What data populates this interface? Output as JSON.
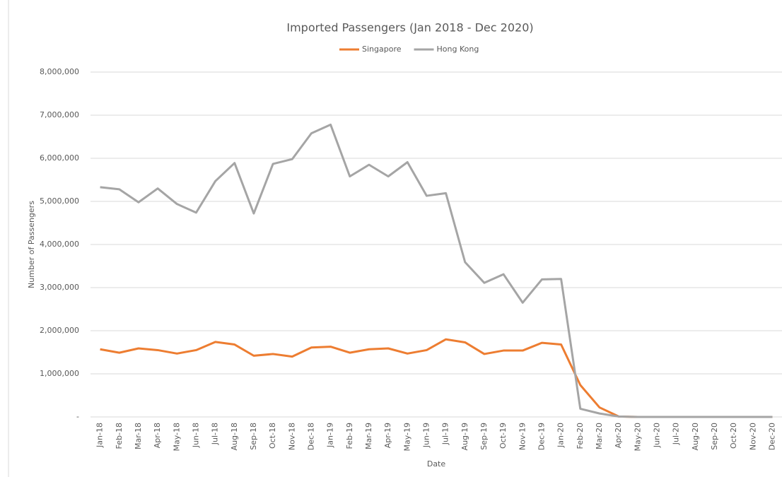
{
  "chart_data": {
    "type": "line",
    "title": "Imported Passengers (Jan 2018 - Dec 2020)",
    "x_label": "Date",
    "y_label": "Number of Passengers",
    "categories": [
      "Jan-18",
      "Feb-18",
      "Mar-18",
      "Apr-18",
      "May-18",
      "Jun-18",
      "Jul-18",
      "Aug-18",
      "Sep-18",
      "Oct-18",
      "Nov-18",
      "Dec-18",
      "Jan-19",
      "Feb-19",
      "Mar-19",
      "Apr-19",
      "May-19",
      "Jun-19",
      "Jul-19",
      "Aug-19",
      "Sep-19",
      "Oct-19",
      "Nov-19",
      "Dec-19",
      "Jan-20",
      "Feb-20",
      "Mar-20",
      "Apr-20",
      "May-20",
      "Jun-20",
      "Jul-20",
      "Aug-20",
      "Sep-20",
      "Oct-20",
      "Nov-20",
      "Dec-20"
    ],
    "series": [
      {
        "name": "Singapore",
        "color": "#ed7d31",
        "values": [
          1570000,
          1490000,
          1590000,
          1550000,
          1470000,
          1550000,
          1740000,
          1680000,
          1420000,
          1460000,
          1400000,
          1610000,
          1630000,
          1490000,
          1570000,
          1590000,
          1470000,
          1550000,
          1800000,
          1730000,
          1460000,
          1540000,
          1540000,
          1720000,
          1680000,
          740000,
          220000,
          10000,
          0,
          0,
          0,
          0,
          0,
          0,
          0,
          0
        ]
      },
      {
        "name": "Hong Kong",
        "color": "#a5a5a5",
        "values": [
          5330000,
          5280000,
          4980000,
          5300000,
          4940000,
          4740000,
          5470000,
          5890000,
          4720000,
          5870000,
          5980000,
          6580000,
          6780000,
          5580000,
          5850000,
          5580000,
          5910000,
          5130000,
          5190000,
          3590000,
          3110000,
          3310000,
          2650000,
          3190000,
          3200000,
          190000,
          80000,
          10000,
          0,
          0,
          0,
          0,
          0,
          0,
          0,
          0
        ]
      }
    ],
    "ylim": [
      0,
      8000000
    ],
    "yticks": [
      {
        "value": 0,
        "label": "-"
      },
      {
        "value": 1000000,
        "label": "1,000,000"
      },
      {
        "value": 2000000,
        "label": "2,000,000"
      },
      {
        "value": 3000000,
        "label": "3,000,000"
      },
      {
        "value": 4000000,
        "label": "4,000,000"
      },
      {
        "value": 5000000,
        "label": "5,000,000"
      },
      {
        "value": 6000000,
        "label": "6,000,000"
      },
      {
        "value": 7000000,
        "label": "7,000,000"
      },
      {
        "value": 8000000,
        "label": "8,000,000"
      }
    ],
    "grid": true,
    "legend": "top"
  }
}
